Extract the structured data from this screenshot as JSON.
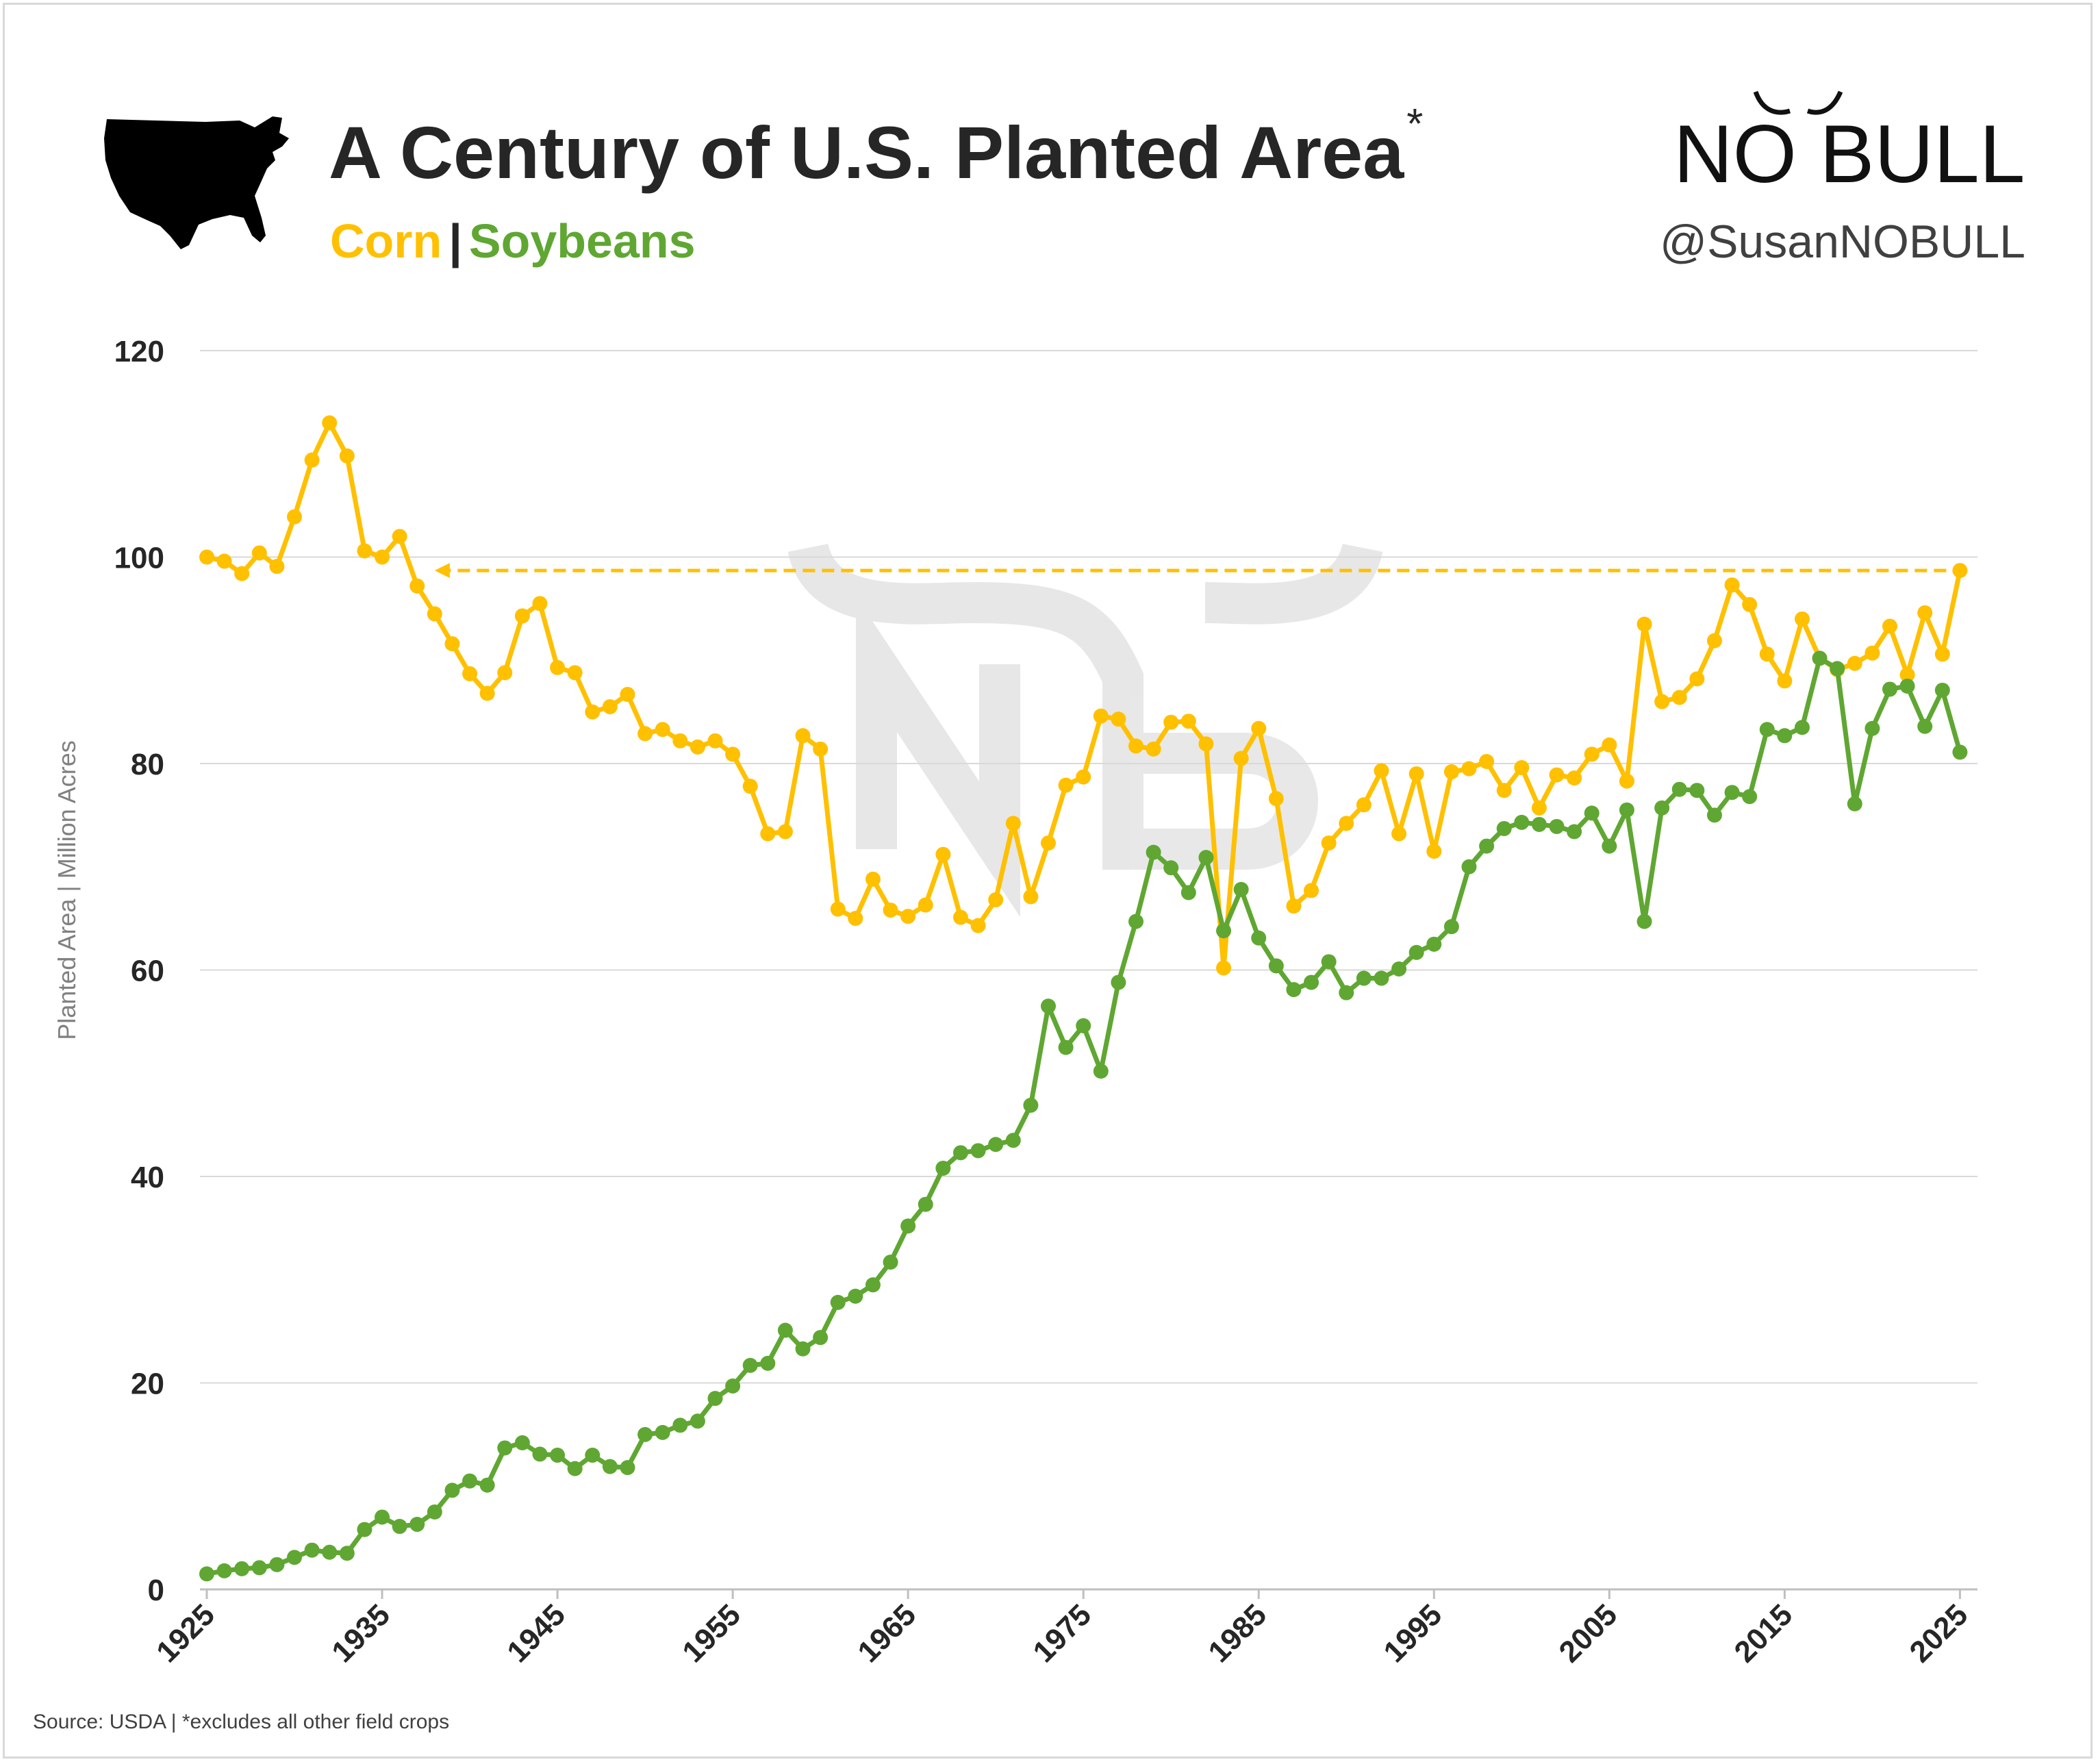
{
  "header": {
    "title": "A Century of U.S. Planted Area",
    "title_mark": "*",
    "subtitle_corn": "Corn",
    "subtitle_sep": "|",
    "subtitle_soy": "Soybeans",
    "logo_text": "NO BULL",
    "handle": "@SusanNOBULL"
  },
  "footer": {
    "source": "Source: USDA | *excludes all other field crops"
  },
  "colors": {
    "corn": "#ffc000",
    "soybeans": "#5fa732",
    "grid": "#d9d9d9",
    "text": "#262626"
  },
  "icons": {
    "map": "usa-map-icon",
    "logo": "bull-horns-logo"
  },
  "chart_data": {
    "type": "line",
    "ylabel": "Planted Area | Million Acres",
    "ylim": [
      0,
      120
    ],
    "yticks": [
      0,
      20,
      40,
      60,
      80,
      100,
      120
    ],
    "xlim": [
      1925,
      2026
    ],
    "xticks": [
      1925,
      1935,
      1945,
      1955,
      1965,
      1975,
      1985,
      1995,
      2005,
      2015,
      2025
    ],
    "grid": true,
    "legend": "subtitle",
    "x": [
      1925,
      1926,
      1927,
      1928,
      1929,
      1930,
      1931,
      1932,
      1933,
      1934,
      1935,
      1936,
      1937,
      1938,
      1939,
      1940,
      1941,
      1942,
      1943,
      1944,
      1945,
      1946,
      1947,
      1948,
      1949,
      1950,
      1951,
      1952,
      1953,
      1954,
      1955,
      1956,
      1957,
      1958,
      1959,
      1960,
      1961,
      1962,
      1963,
      1964,
      1965,
      1966,
      1967,
      1968,
      1969,
      1970,
      1971,
      1972,
      1973,
      1974,
      1975,
      1976,
      1977,
      1978,
      1979,
      1980,
      1981,
      1982,
      1983,
      1984,
      1985,
      1986,
      1987,
      1988,
      1989,
      1990,
      1991,
      1992,
      1993,
      1994,
      1995,
      1996,
      1997,
      1998,
      1999,
      2000,
      2001,
      2002,
      2003,
      2004,
      2005,
      2006,
      2007,
      2008,
      2009,
      2010,
      2011,
      2012,
      2013,
      2014,
      2015,
      2016,
      2017,
      2018,
      2019,
      2020,
      2021,
      2022,
      2023,
      2024,
      2025
    ],
    "series": [
      {
        "name": "Corn",
        "values": [
          100.0,
          99.6,
          98.4,
          100.4,
          99.1,
          103.9,
          109.4,
          113.0,
          109.8,
          100.6,
          100.0,
          102.0,
          97.2,
          94.5,
          91.6,
          88.7,
          86.8,
          88.8,
          94.3,
          95.5,
          89.3,
          88.8,
          85.0,
          85.5,
          86.7,
          82.9,
          83.3,
          82.2,
          81.6,
          82.2,
          80.9,
          77.8,
          73.2,
          73.4,
          82.7,
          81.4,
          65.9,
          65.0,
          68.8,
          65.8,
          65.2,
          66.3,
          71.2,
          65.1,
          64.3,
          66.8,
          74.2,
          67.1,
          72.3,
          77.9,
          78.7,
          84.6,
          84.3,
          81.7,
          81.4,
          84.0,
          84.1,
          81.9,
          60.2,
          80.5,
          83.4,
          76.6,
          66.2,
          67.7,
          72.3,
          74.2,
          76.0,
          79.3,
          73.2,
          79.0,
          71.5,
          79.2,
          79.5,
          80.2,
          77.4,
          79.6,
          75.7,
          78.9,
          78.6,
          80.9,
          81.8,
          78.3,
          93.5,
          86.0,
          86.4,
          88.2,
          91.9,
          97.3,
          95.4,
          90.6,
          88.0,
          94.0,
          90.2,
          89.1,
          89.7,
          90.7,
          93.3,
          88.6,
          94.6,
          90.6,
          98.7
        ]
      },
      {
        "name": "Soybeans",
        "values": [
          1.5,
          1.8,
          2.0,
          2.1,
          2.4,
          3.1,
          3.8,
          3.6,
          3.5,
          5.8,
          7.0,
          6.1,
          6.3,
          7.5,
          9.6,
          10.5,
          10.1,
          13.7,
          14.2,
          13.1,
          13.0,
          11.7,
          13.0,
          11.9,
          11.8,
          15.0,
          15.2,
          15.9,
          16.3,
          18.5,
          19.7,
          21.7,
          21.9,
          25.1,
          23.3,
          24.4,
          27.8,
          28.4,
          29.5,
          31.7,
          35.2,
          37.3,
          40.8,
          42.3,
          42.5,
          43.1,
          43.5,
          46.9,
          56.5,
          52.5,
          54.6,
          50.2,
          58.8,
          64.7,
          71.4,
          69.9,
          67.5,
          70.9,
          63.8,
          67.8,
          63.1,
          60.4,
          58.1,
          58.8,
          60.8,
          57.8,
          59.2,
          59.2,
          60.1,
          61.7,
          62.5,
          64.2,
          70.0,
          72.0,
          73.7,
          74.3,
          74.1,
          73.9,
          73.4,
          75.2,
          72.0,
          75.5,
          64.7,
          75.7,
          77.5,
          77.4,
          75.0,
          77.2,
          76.8,
          83.3,
          82.7,
          83.5,
          90.2,
          89.2,
          76.1,
          83.4,
          87.2,
          87.5,
          83.6,
          87.1,
          81.1
        ]
      }
    ],
    "annotation": {
      "type": "dashed-arrow",
      "series": "Corn",
      "from_x": 2025,
      "to_x": 1938,
      "y": 98.7
    }
  }
}
